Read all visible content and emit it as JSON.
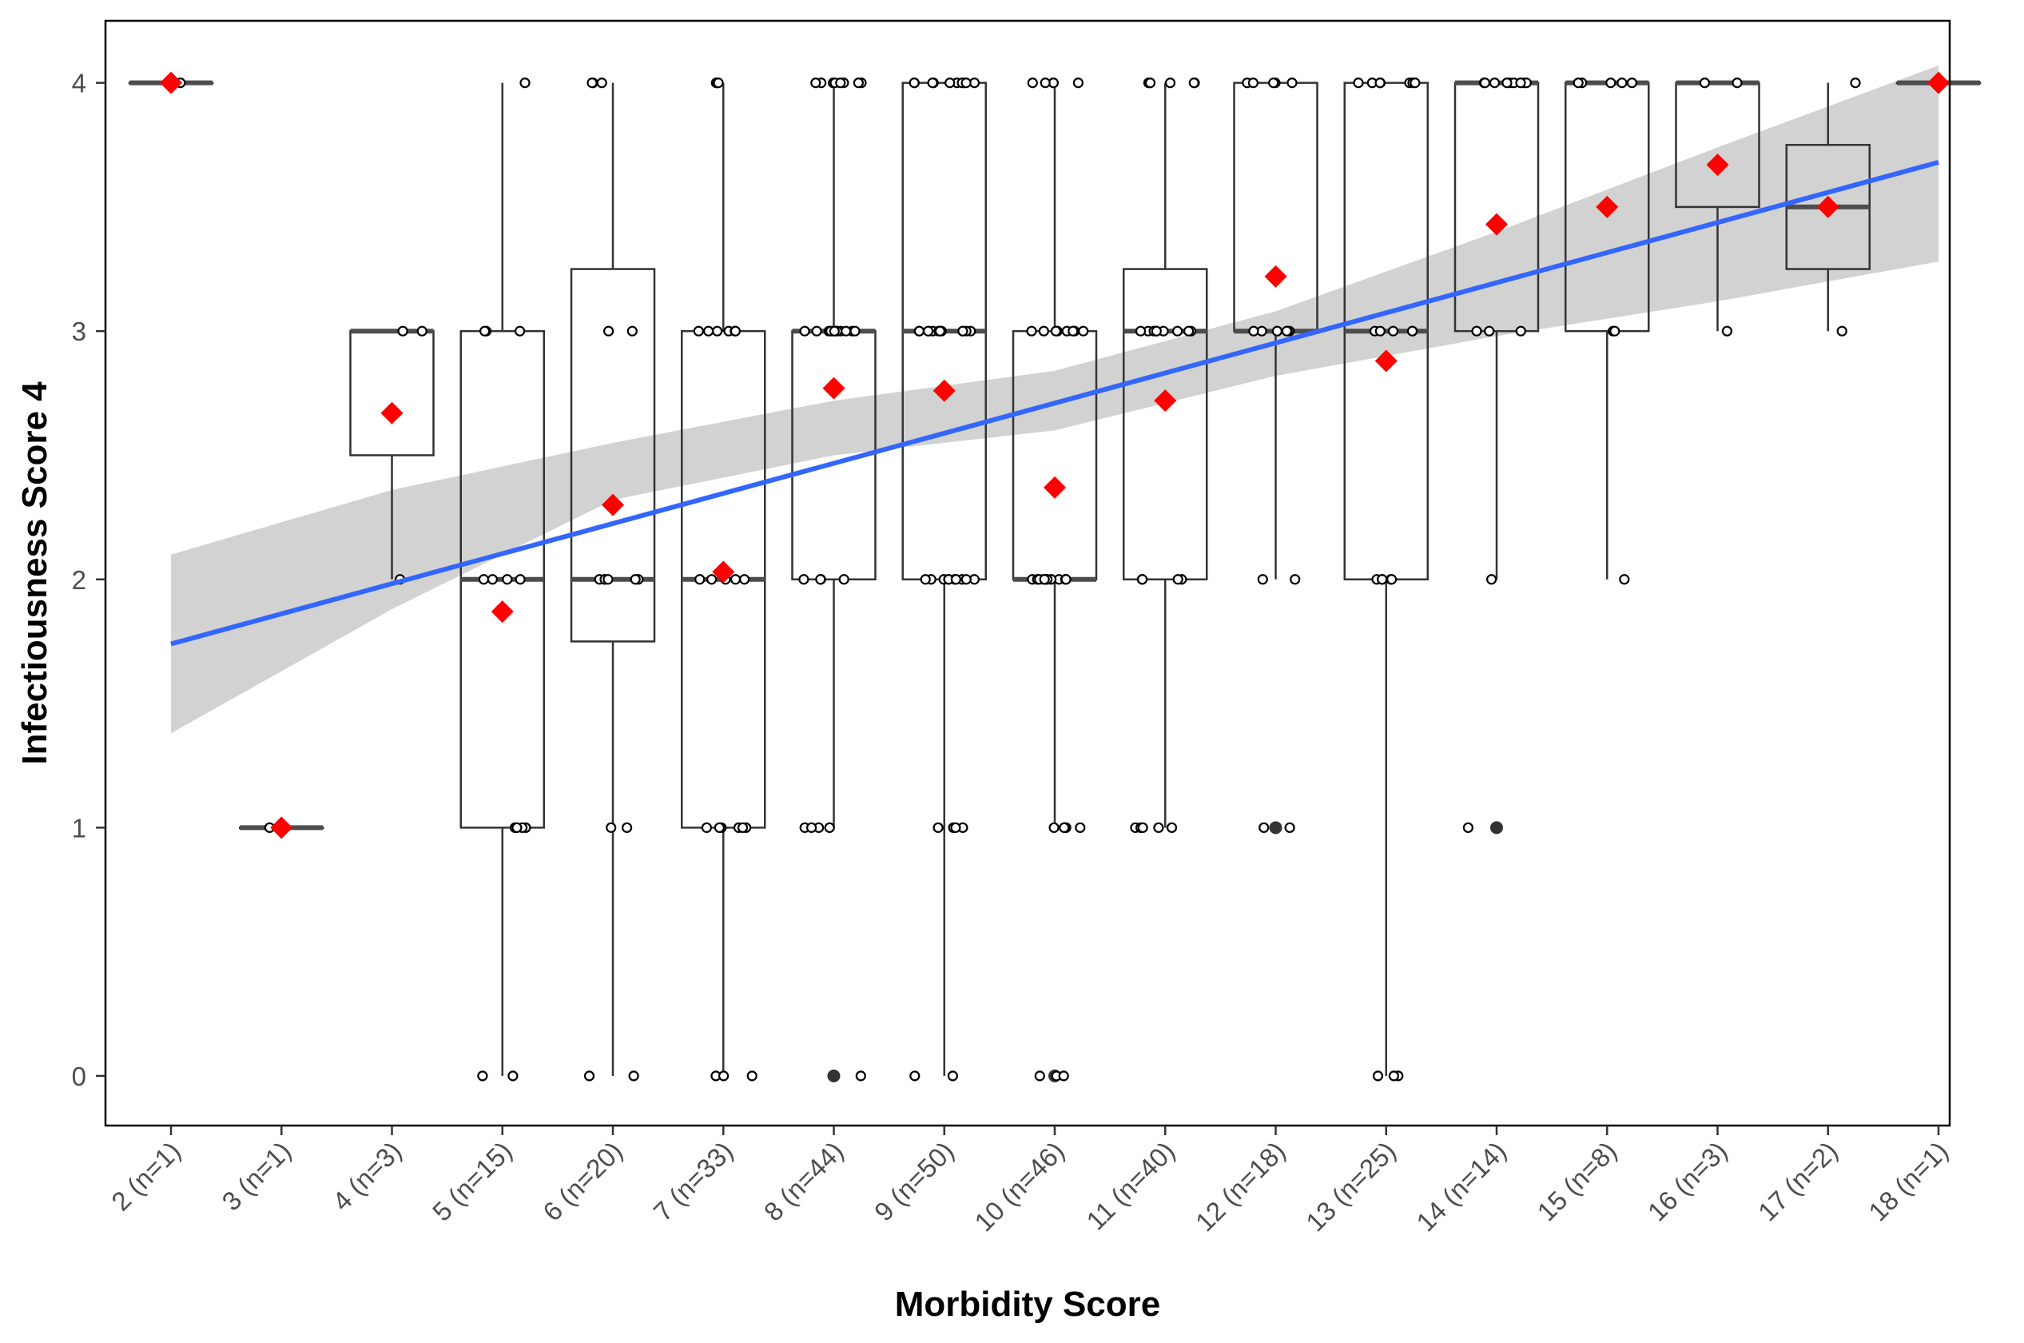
{
  "chart_data": {
    "type": "boxplot",
    "title": "",
    "xlabel": "Morbidity Score",
    "ylabel": "Infectiousness Score 4",
    "ylim": [
      -0.2,
      4.25
    ],
    "yticks": [
      0,
      1,
      2,
      3,
      4
    ],
    "grid": false,
    "categories": [
      "2 (n=1)",
      "3 (n=1)",
      "4 (n=3)",
      "5 (n=15)",
      "6 (n=20)",
      "7 (n=33)",
      "8 (n=44)",
      "9 (n=50)",
      "10 (n=46)",
      "11 (n=40)",
      "12 (n=18)",
      "13 (n=25)",
      "14 (n=14)",
      "15 (n=8)",
      "16 (n=3)",
      "17 (n=2)",
      "18 (n=1)"
    ],
    "boxes": [
      {
        "q1": 4,
        "median": 4,
        "q3": 4,
        "whisker_low": 4,
        "whisker_high": 4,
        "outliers": []
      },
      {
        "q1": 1,
        "median": 1,
        "q3": 1,
        "whisker_low": 1,
        "whisker_high": 1,
        "outliers": []
      },
      {
        "q1": 2.5,
        "median": 3,
        "q3": 3,
        "whisker_low": 2,
        "whisker_high": 3,
        "outliers": []
      },
      {
        "q1": 1,
        "median": 2,
        "q3": 3,
        "whisker_low": 0,
        "whisker_high": 4,
        "outliers": []
      },
      {
        "q1": 1.75,
        "median": 2,
        "q3": 3.25,
        "whisker_low": 0,
        "whisker_high": 4,
        "outliers": []
      },
      {
        "q1": 1,
        "median": 2,
        "q3": 3,
        "whisker_low": 0,
        "whisker_high": 4,
        "outliers": []
      },
      {
        "q1": 2,
        "median": 3,
        "q3": 3,
        "whisker_low": 1,
        "whisker_high": 4,
        "outliers": [
          0
        ]
      },
      {
        "q1": 2,
        "median": 3,
        "q3": 4,
        "whisker_low": 0,
        "whisker_high": 4,
        "outliers": []
      },
      {
        "q1": 2,
        "median": 2,
        "q3": 3,
        "whisker_low": 1,
        "whisker_high": 4,
        "outliers": [
          0
        ]
      },
      {
        "q1": 2,
        "median": 3,
        "q3": 3.25,
        "whisker_low": 1,
        "whisker_high": 4,
        "outliers": []
      },
      {
        "q1": 3,
        "median": 3,
        "q3": 4,
        "whisker_low": 2,
        "whisker_high": 4,
        "outliers": [
          1
        ]
      },
      {
        "q1": 2,
        "median": 3,
        "q3": 4,
        "whisker_low": 0,
        "whisker_high": 4,
        "outliers": []
      },
      {
        "q1": 3,
        "median": 4,
        "q3": 4,
        "whisker_low": 2,
        "whisker_high": 4,
        "outliers": [
          1
        ]
      },
      {
        "q1": 3,
        "median": 4,
        "q3": 4,
        "whisker_low": 2,
        "whisker_high": 4,
        "outliers": []
      },
      {
        "q1": 3.5,
        "median": 4,
        "q3": 4,
        "whisker_low": 3,
        "whisker_high": 4,
        "outliers": []
      },
      {
        "q1": 3.25,
        "median": 3.5,
        "q3": 3.75,
        "whisker_low": 3,
        "whisker_high": 4,
        "outliers": []
      },
      {
        "q1": 4,
        "median": 4,
        "q3": 4,
        "whisker_low": 4,
        "whisker_high": 4,
        "outliers": []
      }
    ],
    "means": [
      4.0,
      1.0,
      2.67,
      1.87,
      2.3,
      2.03,
      2.77,
      2.76,
      2.37,
      2.72,
      3.22,
      2.88,
      3.43,
      3.5,
      3.67,
      3.5,
      4.0
    ],
    "jitter_points": [
      [
        4
      ],
      [
        1
      ],
      [
        2,
        3,
        3
      ],
      [
        0,
        0,
        1,
        1,
        1,
        1,
        2,
        2,
        2,
        2,
        3,
        3,
        3,
        4
      ],
      [
        0,
        0,
        1,
        1,
        2,
        2,
        2,
        2,
        2,
        2,
        3,
        3,
        4,
        4,
        4
      ],
      [
        0,
        0,
        0,
        1,
        1,
        1,
        1,
        1,
        1,
        2,
        2,
        2,
        2,
        2,
        3,
        3,
        3,
        3,
        3,
        3,
        4,
        4,
        4
      ],
      [
        0,
        1,
        1,
        1,
        1,
        2,
        2,
        2,
        2,
        3,
        3,
        3,
        3,
        3,
        3,
        3,
        3,
        3,
        3,
        3,
        3,
        4,
        4,
        4,
        4,
        4,
        4,
        4,
        4
      ],
      [
        0,
        0,
        1,
        1,
        1,
        1,
        2,
        2,
        2,
        2,
        2,
        2,
        2,
        2,
        2,
        2,
        3,
        3,
        3,
        3,
        3,
        3,
        3,
        3,
        3,
        3,
        3,
        3,
        4,
        4,
        4,
        4,
        4,
        4,
        4,
        4,
        4,
        4
      ],
      [
        0,
        0,
        0,
        1,
        1,
        1,
        1,
        1,
        2,
        2,
        2,
        2,
        2,
        2,
        2,
        2,
        2,
        2,
        2,
        2,
        3,
        3,
        3,
        3,
        3,
        3,
        3,
        3,
        4,
        4,
        4,
        4,
        4
      ],
      [
        1,
        1,
        1,
        1,
        1,
        2,
        2,
        2,
        2,
        3,
        3,
        3,
        3,
        3,
        3,
        3,
        3,
        3,
        4,
        4,
        4,
        4,
        4,
        4
      ],
      [
        1,
        1,
        2,
        2,
        3,
        3,
        3,
        3,
        3,
        3,
        3,
        4,
        4,
        4,
        4,
        4
      ],
      [
        0,
        0,
        0,
        2,
        2,
        2,
        2,
        2,
        3,
        3,
        3,
        3,
        3,
        4,
        4,
        4,
        4,
        4,
        4,
        4
      ],
      [
        1,
        2,
        3,
        3,
        3,
        4,
        4,
        4,
        4,
        4,
        4,
        4,
        4,
        4
      ],
      [
        2,
        3,
        3,
        4,
        4,
        4,
        4,
        4
      ],
      [
        3,
        4,
        4
      ],
      [
        3,
        4
      ],
      [
        4
      ]
    ],
    "regression": {
      "x0": 0,
      "y0": 1.74,
      "x1": 16,
      "y1": 3.68,
      "ci": [
        [
          0,
          1.38,
          2.1
        ],
        [
          2,
          1.88,
          2.36
        ],
        [
          4,
          2.32,
          2.55
        ],
        [
          6,
          2.5,
          2.72
        ],
        [
          8,
          2.6,
          2.84
        ],
        [
          10,
          2.82,
          3.08
        ],
        [
          12,
          2.98,
          3.4
        ],
        [
          14,
          3.12,
          3.74
        ],
        [
          16,
          3.28,
          4.07
        ]
      ]
    },
    "colors": {
      "mean": "#ff0000",
      "regression": "#3366ff",
      "ci": "#d0d0d0",
      "box": "#333333",
      "median": "#4d4d4d",
      "point": "#000000"
    }
  }
}
